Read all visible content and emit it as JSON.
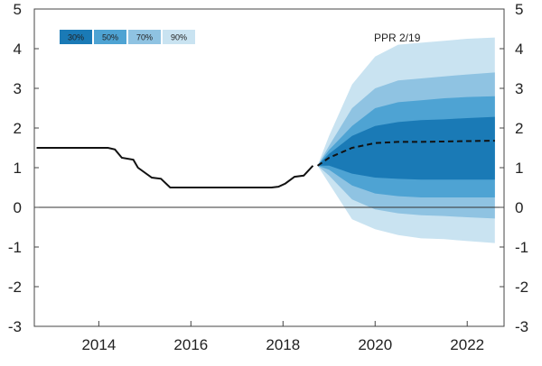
{
  "chart_data": {
    "type": "area",
    "title": "",
    "xlabel": "",
    "ylabel": "",
    "xlim": [
      2012.6,
      2022.8
    ],
    "ylim": [
      -3,
      5
    ],
    "grid": false,
    "legend_placement": "top-left",
    "x_ticks": [
      2014,
      2016,
      2018,
      2020,
      2022
    ],
    "x_tick_labels": [
      "2014",
      "2016",
      "2018",
      "2020",
      "2022"
    ],
    "y_ticks": [
      -3,
      -2,
      -1,
      0,
      1,
      2,
      3,
      4,
      5
    ],
    "y_tick_labels": [
      "-3",
      "-2",
      "-1",
      "0",
      "1",
      "2",
      "3",
      "4",
      "5"
    ],
    "annotation": "PPR 2/19",
    "history": {
      "x": [
        2012.65,
        2014.0,
        2014.2,
        2014.35,
        2014.5,
        2014.75,
        2014.85,
        2015.15,
        2015.35,
        2015.55,
        2015.75,
        2016.0,
        2016.2,
        2017.0,
        2017.5,
        2017.75,
        2017.9,
        2018.05,
        2018.25,
        2018.45,
        2018.65
      ],
      "y": [
        1.5,
        1.5,
        1.5,
        1.46,
        1.25,
        1.2,
        1.0,
        0.75,
        0.72,
        0.5,
        0.5,
        0.5,
        0.5,
        0.5,
        0.5,
        0.5,
        0.52,
        0.6,
        0.77,
        0.8,
        1.05
      ]
    },
    "forecast": {
      "x": [
        2018.75,
        2019.0,
        2019.5,
        2020.0,
        2020.5,
        2021.0,
        2021.5,
        2022.0,
        2022.6
      ],
      "median": [
        1.05,
        1.25,
        1.5,
        1.62,
        1.65,
        1.65,
        1.66,
        1.67,
        1.68
      ],
      "bands": [
        {
          "name": "90%",
          "color": "#c9e3f1",
          "lower": [
            1.05,
            0.6,
            -0.3,
            -0.55,
            -0.7,
            -0.78,
            -0.8,
            -0.85,
            -0.9
          ],
          "upper": [
            1.05,
            1.8,
            3.1,
            3.8,
            4.1,
            4.15,
            4.2,
            4.25,
            4.28
          ]
        },
        {
          "name": "70%",
          "color": "#8fc3e2",
          "lower": [
            1.05,
            0.8,
            0.2,
            -0.05,
            -0.15,
            -0.2,
            -0.22,
            -0.25,
            -0.28
          ],
          "upper": [
            1.05,
            1.55,
            2.5,
            3.0,
            3.2,
            3.25,
            3.3,
            3.35,
            3.4
          ]
        },
        {
          "name": "50%",
          "color": "#4ea3d3",
          "lower": [
            1.05,
            0.95,
            0.55,
            0.35,
            0.28,
            0.25,
            0.25,
            0.25,
            0.25
          ],
          "upper": [
            1.05,
            1.45,
            2.05,
            2.5,
            2.65,
            2.7,
            2.75,
            2.78,
            2.8
          ]
        },
        {
          "name": "30%",
          "color": "#1a7ab6",
          "lower": [
            1.05,
            1.05,
            0.85,
            0.75,
            0.72,
            0.7,
            0.7,
            0.7,
            0.7
          ],
          "upper": [
            1.05,
            1.35,
            1.8,
            2.05,
            2.15,
            2.2,
            2.22,
            2.25,
            2.28
          ]
        }
      ]
    },
    "legend": [
      {
        "label": "30%",
        "color": "#1a7ab6"
      },
      {
        "label": "50%",
        "color": "#4ea3d3"
      },
      {
        "label": "70%",
        "color": "#8fc3e2"
      },
      {
        "label": "90%",
        "color": "#c9e3f1"
      }
    ]
  }
}
